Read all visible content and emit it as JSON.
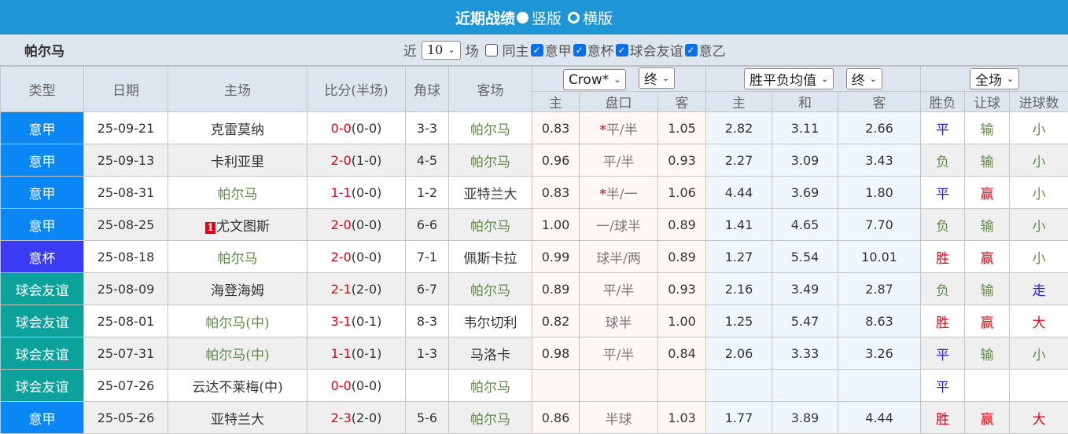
{
  "header": {
    "title": "近期战绩",
    "option_vertical": "竖版",
    "option_horizontal": "横版"
  },
  "filter": {
    "team": "帕尔马",
    "near_label": "近",
    "count": "10",
    "unit_label": "场",
    "same_home_label": "同主",
    "same_home_checked": false,
    "leagues": [
      {
        "label": "意甲",
        "checked": true
      },
      {
        "label": "意杯",
        "checked": true
      },
      {
        "label": "球会友谊",
        "checked": true
      },
      {
        "label": "意乙",
        "checked": true
      }
    ]
  },
  "columns": {
    "type": "类型",
    "date": "日期",
    "home": "主场",
    "score": "比分(半场)",
    "corner": "角球",
    "away": "客场",
    "company_select": "Crow*",
    "handicap_stage_select": "终",
    "odds_select": "胜平负均值",
    "odds_stage_select": "终",
    "period_select": "全场",
    "hc_home": "主",
    "hc_line": "盘口",
    "hc_away": "客",
    "o_home": "主",
    "o_draw": "和",
    "o_away": "客",
    "result": "胜负",
    "handicap_result": "让球",
    "goals_result": "进球数"
  },
  "colors": {
    "serie_a": "#0a87f5",
    "coppa": "#3b3bf5",
    "friendly": "#0aa29b",
    "win": "#e60012",
    "draw": "#2020e0",
    "loss": "#5f8a45"
  },
  "rows": [
    {
      "type": "意甲",
      "tc": "serie_a",
      "date": "25-09-21",
      "home": "克雷莫纳",
      "home_hl": false,
      "rank": "",
      "score": "0-0",
      "half": "(0-0)",
      "corner": "3-3",
      "away": "帕尔马",
      "away_hl": true,
      "h1": "0.83",
      "star": true,
      "line": "平/半",
      "h2": "1.05",
      "o1": "2.82",
      "o2": "3.11",
      "o3": "2.66",
      "res": "平",
      "hres": "输",
      "gres": "小"
    },
    {
      "type": "意甲",
      "tc": "serie_a",
      "date": "25-09-13",
      "home": "卡利亚里",
      "home_hl": false,
      "rank": "",
      "score": "2-0",
      "half": "(1-0)",
      "corner": "4-5",
      "away": "帕尔马",
      "away_hl": true,
      "h1": "0.96",
      "star": false,
      "line": "平/半",
      "h2": "0.93",
      "o1": "2.27",
      "o2": "3.09",
      "o3": "3.43",
      "res": "负",
      "hres": "输",
      "gres": "小"
    },
    {
      "type": "意甲",
      "tc": "serie_a",
      "date": "25-08-31",
      "home": "帕尔马",
      "home_hl": true,
      "rank": "",
      "score": "1-1",
      "half": "(0-0)",
      "corner": "1-2",
      "away": "亚特兰大",
      "away_hl": false,
      "h1": "0.83",
      "star": true,
      "line": "半/一",
      "h2": "1.06",
      "o1": "4.44",
      "o2": "3.69",
      "o3": "1.80",
      "res": "平",
      "hres": "赢",
      "gres": "小"
    },
    {
      "type": "意甲",
      "tc": "serie_a",
      "date": "25-08-25",
      "home": "尤文图斯",
      "home_hl": false,
      "rank": "1",
      "score": "2-0",
      "half": "(0-0)",
      "corner": "6-6",
      "away": "帕尔马",
      "away_hl": true,
      "h1": "1.00",
      "star": false,
      "line": "一/球半",
      "h2": "0.89",
      "o1": "1.41",
      "o2": "4.65",
      "o3": "7.70",
      "res": "负",
      "hres": "输",
      "gres": "小"
    },
    {
      "type": "意杯",
      "tc": "coppa",
      "date": "25-08-18",
      "home": "帕尔马",
      "home_hl": true,
      "rank": "",
      "score": "2-0",
      "half": "(0-0)",
      "corner": "7-1",
      "away": "佩斯卡拉",
      "away_hl": false,
      "h1": "0.99",
      "star": false,
      "line": "球半/两",
      "h2": "0.89",
      "o1": "1.27",
      "o2": "5.54",
      "o3": "10.01",
      "res": "胜",
      "hres": "赢",
      "gres": "小"
    },
    {
      "type": "球会友谊",
      "tc": "friendly",
      "date": "25-08-09",
      "home": "海登海姆",
      "home_hl": false,
      "rank": "",
      "score": "2-1",
      "half": "(2-0)",
      "corner": "6-7",
      "away": "帕尔马",
      "away_hl": true,
      "h1": "0.89",
      "star": false,
      "line": "平/半",
      "h2": "0.93",
      "o1": "2.16",
      "o2": "3.49",
      "o3": "2.87",
      "res": "负",
      "hres": "输",
      "gres": "走"
    },
    {
      "type": "球会友谊",
      "tc": "friendly",
      "date": "25-08-01",
      "home": "帕尔马(中)",
      "home_hl": true,
      "rank": "",
      "score": "3-1",
      "half": "(0-1)",
      "corner": "8-3",
      "away": "韦尔切利",
      "away_hl": false,
      "h1": "0.82",
      "star": false,
      "line": "球半",
      "h2": "1.00",
      "o1": "1.25",
      "o2": "5.47",
      "o3": "8.63",
      "res": "胜",
      "hres": "赢",
      "gres": "大"
    },
    {
      "type": "球会友谊",
      "tc": "friendly",
      "date": "25-07-31",
      "home": "帕尔马(中)",
      "home_hl": true,
      "rank": "",
      "score": "1-1",
      "half": "(0-1)",
      "corner": "1-3",
      "away": "马洛卡",
      "away_hl": false,
      "h1": "0.98",
      "star": false,
      "line": "平/半",
      "h2": "0.84",
      "o1": "2.06",
      "o2": "3.33",
      "o3": "3.26",
      "res": "平",
      "hres": "输",
      "gres": "小"
    },
    {
      "type": "球会友谊",
      "tc": "friendly",
      "date": "25-07-26",
      "home": "云达不莱梅(中)",
      "home_hl": false,
      "rank": "",
      "score": "0-0",
      "half": "(0-0)",
      "corner": "",
      "away": "帕尔马",
      "away_hl": true,
      "h1": "",
      "star": false,
      "line": "",
      "h2": "",
      "o1": "",
      "o2": "",
      "o3": "",
      "res": "平",
      "hres": "",
      "gres": ""
    },
    {
      "type": "意甲",
      "tc": "serie_a",
      "date": "25-05-26",
      "home": "亚特兰大",
      "home_hl": false,
      "rank": "",
      "score": "2-3",
      "half": "(2-0)",
      "corner": "5-6",
      "away": "帕尔马",
      "away_hl": true,
      "h1": "0.86",
      "star": false,
      "line": "半球",
      "h2": "1.03",
      "o1": "1.77",
      "o2": "3.89",
      "o3": "4.44",
      "res": "胜",
      "hres": "赢",
      "gres": "大"
    }
  ]
}
